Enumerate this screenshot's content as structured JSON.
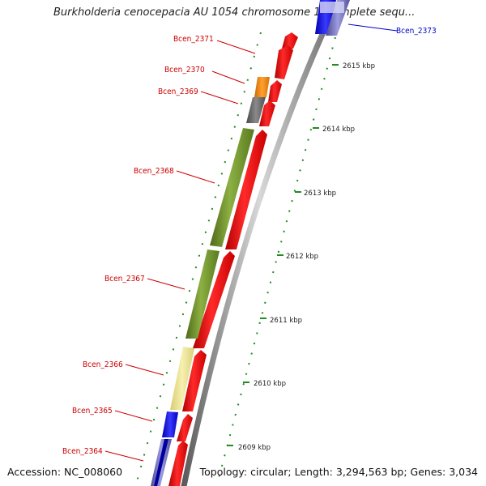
{
  "title": "Burkholderia cenocepacia AU 1054 chromosome 1, complete sequ...",
  "footer": {
    "accession": "Accession: NC_008060",
    "summary": "Topology: circular; Length: 3,294,563 bp; Genes: 3,034"
  },
  "colors": {
    "cds_red": "#ff0000",
    "olive": "#6b8e23",
    "orange": "#ff8c00",
    "gray": "#666666",
    "khaki": "#f0e68c",
    "blue": "#0000ff",
    "lavender": "#7a78c9",
    "label_red": "#cc0000",
    "label_blue": "#0000cc",
    "tick_green": "#228b22"
  },
  "genes": [
    {
      "name": "Bcen_2373"
    },
    {
      "name": "Bcen_2371"
    },
    {
      "name": "Bcen_2370"
    },
    {
      "name": "Bcen_2369"
    },
    {
      "name": "Bcen_2368"
    },
    {
      "name": "Bcen_2367"
    },
    {
      "name": "Bcen_2366"
    },
    {
      "name": "Bcen_2365"
    },
    {
      "name": "Bcen_2364"
    }
  ],
  "ticks": [
    {
      "label": "2615 kbp"
    },
    {
      "label": "2614 kbp"
    },
    {
      "label": "2613 kbp"
    },
    {
      "label": "2612 kbp"
    },
    {
      "label": "2611 kbp"
    },
    {
      "label": "2610 kbp"
    },
    {
      "label": "2609 kbp"
    }
  ]
}
